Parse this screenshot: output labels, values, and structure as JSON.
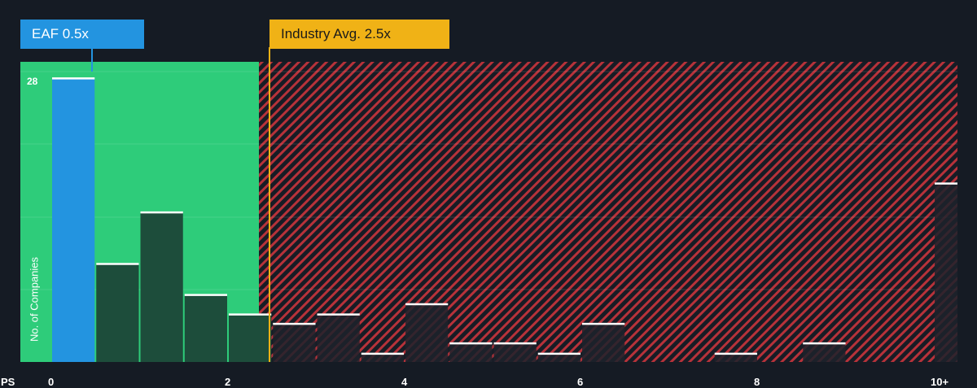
{
  "company": {
    "label": "EAF 0.5x",
    "value": 0.5,
    "color": "#2394e0"
  },
  "industry": {
    "label": "Industry Avg. 2.5x",
    "value": 2.5,
    "color": "#f0b216"
  },
  "chart_data": {
    "type": "bar",
    "xlabel": "PS",
    "ylabel": "No. of Companies",
    "x_ticks": [
      "0",
      "2",
      "4",
      "6",
      "8",
      "10+"
    ],
    "y_max_label": "28",
    "ylim": [
      0,
      28
    ],
    "xlim": [
      0,
      10
    ],
    "bin_width": 0.5,
    "bins": [
      {
        "x": 0.0,
        "value": 27.5
      },
      {
        "x": 0.5,
        "value": 9.5
      },
      {
        "x": 1.0,
        "value": 14.5
      },
      {
        "x": 1.5,
        "value": 6.5
      },
      {
        "x": 2.0,
        "value": 4.6
      },
      {
        "x": 2.5,
        "value": 3.7
      },
      {
        "x": 3.0,
        "value": 4.6
      },
      {
        "x": 3.5,
        "value": 0.8
      },
      {
        "x": 4.0,
        "value": 5.6
      },
      {
        "x": 4.5,
        "value": 1.8
      },
      {
        "x": 5.0,
        "value": 1.8
      },
      {
        "x": 5.5,
        "value": 0.8
      },
      {
        "x": 6.0,
        "value": 3.7
      },
      {
        "x": 6.5,
        "value": 0
      },
      {
        "x": 7.0,
        "value": 0
      },
      {
        "x": 7.5,
        "value": 0.8
      },
      {
        "x": 8.0,
        "value": 0
      },
      {
        "x": 8.5,
        "value": 1.8
      },
      {
        "x": 9.0,
        "value": 0
      },
      {
        "x": 9.5,
        "value": 0
      },
      {
        "x": 10.0,
        "value": 17.3
      }
    ],
    "colors": {
      "company_bar": "#2394e0",
      "green_zone": "#2ecc7a",
      "green_bar": "#1d4d3b",
      "red_zone": "#b7323a",
      "dark_bar": "#1d222c",
      "background": "#151b24"
    }
  }
}
